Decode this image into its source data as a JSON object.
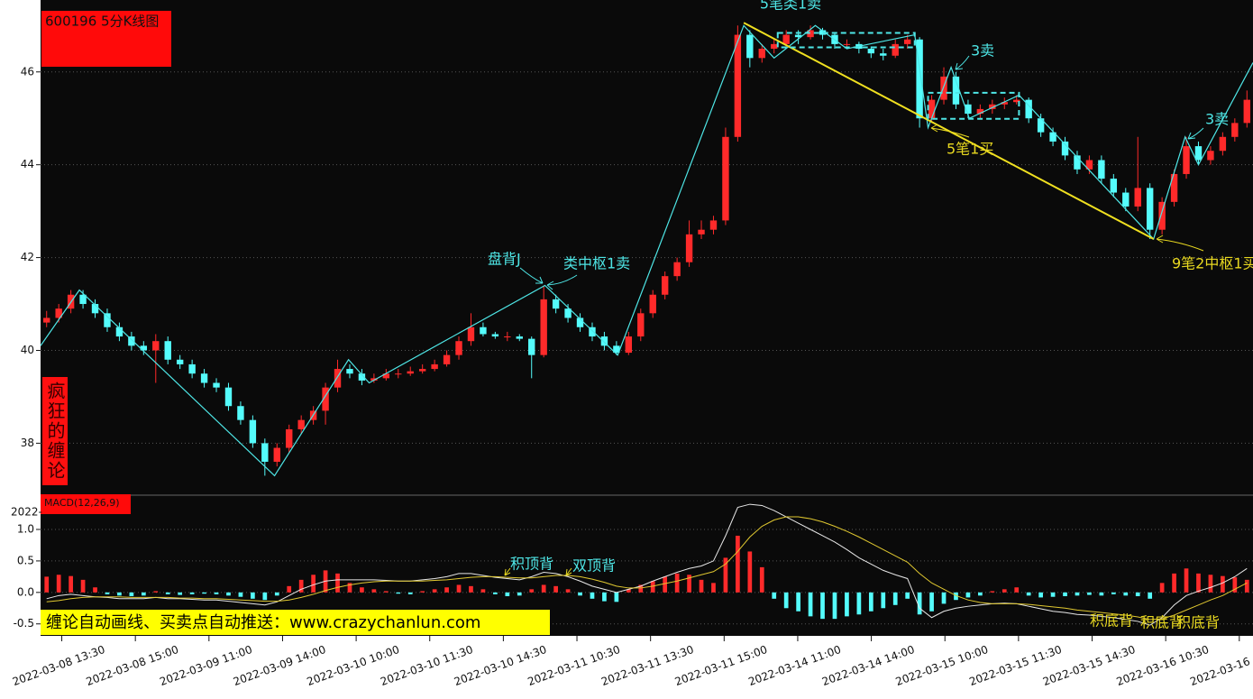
{
  "chart_data": [
    {
      "type": "candlestick",
      "title": "600196 5分K线图",
      "side_label": "疯狂的缠论",
      "xlim": [
        -0.5,
        99.5
      ],
      "ylim": [
        36.9,
        47.55
      ],
      "yticks": [
        38,
        40,
        42,
        44,
        46
      ],
      "grid": true,
      "up_color": "#ff2a2a",
      "down_color": "#54fcfc",
      "ohlc": [
        [
          40.6,
          40.85,
          40.5,
          40.7
        ],
        [
          40.7,
          41.0,
          40.6,
          40.9
        ],
        [
          40.9,
          41.3,
          40.8,
          41.2
        ],
        [
          41.2,
          41.3,
          40.9,
          41.0
        ],
        [
          41.0,
          41.1,
          40.7,
          40.8
        ],
        [
          40.8,
          40.9,
          40.4,
          40.5
        ],
        [
          40.5,
          40.6,
          40.2,
          40.3
        ],
        [
          40.3,
          40.4,
          40.0,
          40.1
        ],
        [
          40.1,
          40.2,
          39.9,
          40.0
        ],
        [
          40.0,
          40.35,
          39.3,
          40.2
        ],
        [
          40.2,
          40.3,
          39.7,
          39.8
        ],
        [
          39.8,
          39.9,
          39.6,
          39.7
        ],
        [
          39.7,
          39.8,
          39.4,
          39.5
        ],
        [
          39.5,
          39.6,
          39.2,
          39.3
        ],
        [
          39.3,
          39.4,
          39.1,
          39.2
        ],
        [
          39.2,
          39.3,
          38.7,
          38.8
        ],
        [
          38.8,
          38.9,
          38.4,
          38.5
        ],
        [
          38.5,
          38.6,
          37.9,
          38.0
        ],
        [
          38.0,
          38.1,
          37.3,
          37.6
        ],
        [
          37.6,
          38.0,
          37.5,
          37.9
        ],
        [
          37.9,
          38.4,
          37.8,
          38.3
        ],
        [
          38.3,
          38.6,
          38.2,
          38.5
        ],
        [
          38.5,
          38.8,
          38.4,
          38.7
        ],
        [
          38.7,
          39.3,
          38.4,
          39.2
        ],
        [
          39.2,
          39.8,
          39.1,
          39.6
        ],
        [
          39.6,
          39.7,
          39.4,
          39.5
        ],
        [
          39.5,
          39.6,
          39.25,
          39.35
        ],
        [
          39.35,
          39.5,
          39.3,
          39.4
        ],
        [
          39.4,
          39.6,
          39.35,
          39.5
        ],
        [
          39.5,
          39.6,
          39.4,
          39.5
        ],
        [
          39.5,
          39.65,
          39.45,
          39.55
        ],
        [
          39.55,
          39.7,
          39.5,
          39.6
        ],
        [
          39.6,
          39.8,
          39.55,
          39.7
        ],
        [
          39.7,
          40.0,
          39.65,
          39.9
        ],
        [
          39.9,
          40.3,
          39.8,
          40.2
        ],
        [
          40.2,
          40.8,
          40.1,
          40.5
        ],
        [
          40.5,
          40.6,
          40.3,
          40.35
        ],
        [
          40.35,
          40.4,
          40.25,
          40.3
        ],
        [
          40.3,
          40.4,
          40.2,
          40.3
        ],
        [
          40.3,
          40.35,
          40.2,
          40.25
        ],
        [
          40.25,
          40.3,
          39.4,
          39.9
        ],
        [
          39.9,
          41.4,
          39.85,
          41.1
        ],
        [
          41.1,
          41.2,
          40.8,
          40.9
        ],
        [
          40.9,
          41.0,
          40.6,
          40.7
        ],
        [
          40.7,
          40.8,
          40.4,
          40.5
        ],
        [
          40.5,
          40.6,
          40.2,
          40.3
        ],
        [
          40.3,
          40.4,
          40.0,
          40.1
        ],
        [
          40.1,
          40.2,
          39.9,
          39.95
        ],
        [
          39.95,
          40.4,
          39.9,
          40.3
        ],
        [
          40.3,
          40.9,
          40.2,
          40.8
        ],
        [
          40.8,
          41.3,
          40.7,
          41.2
        ],
        [
          41.2,
          41.7,
          41.1,
          41.6
        ],
        [
          41.6,
          42.0,
          41.5,
          41.9
        ],
        [
          41.9,
          42.8,
          41.8,
          42.5
        ],
        [
          42.5,
          42.8,
          42.4,
          42.6
        ],
        [
          42.6,
          42.9,
          42.5,
          42.8
        ],
        [
          42.8,
          44.8,
          42.7,
          44.6
        ],
        [
          44.6,
          47.0,
          44.5,
          46.8
        ],
        [
          46.8,
          46.9,
          46.1,
          46.3
        ],
        [
          46.3,
          46.6,
          46.2,
          46.5
        ],
        [
          46.5,
          46.7,
          46.4,
          46.6
        ],
        [
          46.6,
          46.9,
          46.5,
          46.8
        ],
        [
          46.8,
          46.9,
          46.6,
          46.75
        ],
        [
          46.75,
          47.0,
          46.7,
          46.9
        ],
        [
          46.9,
          46.95,
          46.7,
          46.8
        ],
        [
          46.8,
          46.85,
          46.5,
          46.6
        ],
        [
          46.6,
          46.7,
          46.5,
          46.6
        ],
        [
          46.6,
          46.65,
          46.4,
          46.5
        ],
        [
          46.5,
          46.55,
          46.3,
          46.4
        ],
        [
          46.4,
          46.5,
          46.25,
          46.35
        ],
        [
          46.35,
          46.7,
          46.3,
          46.6
        ],
        [
          46.6,
          46.8,
          46.5,
          46.7
        ],
        [
          46.7,
          46.75,
          44.8,
          45.0
        ],
        [
          45.0,
          45.5,
          44.9,
          45.4
        ],
        [
          45.4,
          46.1,
          45.3,
          45.9
        ],
        [
          45.9,
          46.0,
          45.2,
          45.3
        ],
        [
          45.3,
          45.4,
          45.0,
          45.1
        ],
        [
          45.1,
          45.3,
          45.0,
          45.2
        ],
        [
          45.2,
          45.4,
          45.1,
          45.3
        ],
        [
          45.3,
          45.45,
          45.2,
          45.35
        ],
        [
          45.35,
          45.5,
          45.3,
          45.4
        ],
        [
          45.4,
          45.45,
          44.9,
          45.0
        ],
        [
          45.0,
          45.1,
          44.6,
          44.7
        ],
        [
          44.7,
          44.8,
          44.4,
          44.5
        ],
        [
          44.5,
          44.6,
          44.1,
          44.2
        ],
        [
          44.2,
          44.3,
          43.8,
          43.9
        ],
        [
          43.9,
          44.2,
          43.8,
          44.1
        ],
        [
          44.1,
          44.2,
          43.6,
          43.7
        ],
        [
          43.7,
          43.8,
          43.3,
          43.4
        ],
        [
          43.4,
          43.5,
          43.0,
          43.1
        ],
        [
          43.1,
          44.6,
          43.0,
          43.5
        ],
        [
          43.5,
          43.6,
          42.4,
          42.6
        ],
        [
          42.6,
          43.3,
          42.5,
          43.2
        ],
        [
          43.2,
          43.9,
          43.1,
          43.8
        ],
        [
          43.8,
          44.6,
          43.7,
          44.4
        ],
        [
          44.4,
          44.5,
          44.0,
          44.1
        ],
        [
          44.1,
          44.4,
          44.0,
          44.3
        ],
        [
          44.3,
          44.7,
          44.2,
          44.6
        ],
        [
          44.6,
          45.0,
          44.5,
          44.9
        ],
        [
          44.9,
          45.6,
          44.8,
          45.4
        ]
      ],
      "strokes": {
        "color": "#4ee6e6",
        "x": [
          -0.5,
          2.7,
          18.8,
          24.9,
          26.6,
          41.1,
          47.1,
          57.5,
          60,
          63.4,
          66,
          71.6,
          72.7,
          74.6,
          76.1,
          80.2,
          91.3,
          93.9,
          95,
          99.5
        ],
        "y": [
          40.1,
          41.3,
          37.3,
          39.8,
          39.3,
          41.4,
          39.9,
          47.0,
          46.3,
          47.0,
          46.5,
          46.8,
          44.8,
          46.1,
          45.0,
          45.5,
          42.4,
          44.6,
          44.0,
          46.2
        ]
      },
      "trend_line": {
        "color": "#f0e020",
        "x": [
          57.5,
          91.3
        ],
        "y": [
          47.06,
          42.4
        ]
      },
      "centers": [
        {
          "x": [
            60.3,
            71.6
          ],
          "y": [
            46.53,
            46.84
          ]
        },
        {
          "x": [
            72.7,
            80.2
          ],
          "y": [
            44.99,
            45.55
          ]
        }
      ],
      "annotations": [
        "5笔类1卖",
        "3卖",
        "5笔1买",
        "3卖",
        "9笔2中枢1买",
        "盘背J",
        "类中枢1卖"
      ]
    },
    {
      "type": "macd",
      "title": "MACD(12,26,9)",
      "cut_label": "2022-",
      "banner": "缠论自动画线、买卖点自动推送：www.crazychanlun.com",
      "xlim": [
        -0.5,
        99.5
      ],
      "ylim": [
        -0.69,
        1.53
      ],
      "yticks": [
        {
          "value": 1,
          "label": "1.0"
        },
        0.5,
        {
          "value": 0,
          "label": "0.0"
        },
        -0.5
      ],
      "grid": true,
      "xticks": [
        {
          "value": 1.25,
          "label": "2022-03-08 13:30"
        },
        {
          "value": 7.32,
          "label": "2022-03-08 15:00"
        },
        {
          "value": 13.39,
          "label": "2022-03-09 11:00"
        },
        {
          "value": 19.46,
          "label": "2022-03-09 14:00"
        },
        {
          "value": 25.53,
          "label": "2022-03-10 10:00"
        },
        {
          "value": 31.6,
          "label": "2022-03-10 11:30"
        },
        {
          "value": 37.67,
          "label": "2022-03-10 14:30"
        },
        {
          "value": 43.74,
          "label": "2022-03-11 10:30"
        },
        {
          "value": 49.81,
          "label": "2022-03-11 13:30"
        },
        {
          "value": 55.88,
          "label": "2022-03-11 15:00"
        },
        {
          "value": 61.95,
          "label": "2022-03-14 11:00"
        },
        {
          "value": 68.02,
          "label": "2022-03-14 14:00"
        },
        {
          "value": 74.09,
          "label": "2022-03-15 10:00"
        },
        {
          "value": 80.16,
          "label": "2022-03-15 11:30"
        },
        {
          "value": 86.23,
          "label": "2022-03-15 14:30"
        },
        {
          "value": 92.3,
          "label": "2022-03-16 10:30"
        },
        {
          "value": 98.37,
          "label": "2022-03-16"
        }
      ],
      "up_color": "#ff2a2a",
      "down_color": "#54fcfc",
      "values": [
        0.25,
        0.28,
        0.26,
        0.2,
        0.08,
        -0.03,
        -0.05,
        -0.06,
        -0.05,
        0.02,
        -0.03,
        -0.04,
        -0.03,
        -0.02,
        -0.03,
        -0.05,
        -0.07,
        -0.1,
        -0.12,
        -0.05,
        0.1,
        0.2,
        0.28,
        0.35,
        0.3,
        0.15,
        0.08,
        0.05,
        0.02,
        -0.02,
        -0.03,
        0.02,
        0.05,
        0.08,
        0.12,
        0.1,
        0.05,
        -0.03,
        -0.06,
        -0.05,
        0.05,
        0.12,
        0.1,
        0.05,
        -0.05,
        -0.1,
        -0.14,
        -0.15,
        0.05,
        0.12,
        0.18,
        0.25,
        0.3,
        0.28,
        0.2,
        0.15,
        0.55,
        0.9,
        0.65,
        0.4,
        -0.1,
        -0.25,
        -0.3,
        -0.38,
        -0.42,
        -0.42,
        -0.38,
        -0.35,
        -0.3,
        -0.25,
        -0.2,
        -0.1,
        -0.35,
        -0.3,
        -0.18,
        -0.12,
        -0.08,
        -0.05,
        0.02,
        0.05,
        0.08,
        -0.05,
        -0.08,
        -0.07,
        -0.06,
        -0.05,
        -0.04,
        -0.05,
        -0.03,
        -0.05,
        -0.06,
        -0.1,
        0.15,
        0.3,
        0.38,
        0.3,
        0.28,
        0.26,
        0.24,
        0.2
      ],
      "series": [
        {
          "color": "#e8e8e8",
          "values": [
            -0.1,
            -0.05,
            -0.03,
            -0.05,
            -0.07,
            -0.08,
            -0.1,
            -0.1,
            -0.1,
            -0.08,
            -0.1,
            -0.1,
            -0.11,
            -0.12,
            -0.12,
            -0.14,
            -0.16,
            -0.18,
            -0.2,
            -0.15,
            -0.05,
            0.05,
            0.12,
            0.18,
            0.2,
            0.2,
            0.2,
            0.2,
            0.19,
            0.18,
            0.18,
            0.2,
            0.22,
            0.25,
            0.3,
            0.3,
            0.27,
            0.24,
            0.22,
            0.2,
            0.25,
            0.32,
            0.3,
            0.25,
            0.18,
            0.1,
            0.05,
            0.0,
            0.05,
            0.1,
            0.18,
            0.25,
            0.32,
            0.38,
            0.42,
            0.5,
            0.9,
            1.35,
            1.4,
            1.38,
            1.3,
            1.2,
            1.1,
            1.0,
            0.9,
            0.8,
            0.68,
            0.55,
            0.45,
            0.35,
            0.28,
            0.22,
            -0.25,
            -0.4,
            -0.3,
            -0.25,
            -0.22,
            -0.2,
            -0.18,
            -0.17,
            -0.18,
            -0.22,
            -0.26,
            -0.3,
            -0.32,
            -0.35,
            -0.36,
            -0.38,
            -0.4,
            -0.43,
            -0.46,
            -0.52,
            -0.4,
            -0.2,
            -0.05,
            0.02,
            0.08,
            0.15,
            0.25,
            0.38
          ]
        },
        {
          "color": "#e0c830",
          "values": [
            -0.15,
            -0.13,
            -0.1,
            -0.08,
            -0.07,
            -0.07,
            -0.07,
            -0.08,
            -0.08,
            -0.08,
            -0.08,
            -0.09,
            -0.09,
            -0.1,
            -0.1,
            -0.11,
            -0.12,
            -0.13,
            -0.14,
            -0.14,
            -0.12,
            -0.08,
            -0.03,
            0.03,
            0.08,
            0.12,
            0.15,
            0.17,
            0.18,
            0.18,
            0.18,
            0.18,
            0.19,
            0.2,
            0.22,
            0.24,
            0.25,
            0.25,
            0.24,
            0.23,
            0.23,
            0.25,
            0.27,
            0.27,
            0.25,
            0.21,
            0.16,
            0.1,
            0.07,
            0.07,
            0.1,
            0.14,
            0.18,
            0.23,
            0.28,
            0.33,
            0.45,
            0.65,
            0.88,
            1.05,
            1.15,
            1.2,
            1.2,
            1.17,
            1.12,
            1.05,
            0.97,
            0.88,
            0.78,
            0.68,
            0.58,
            0.48,
            0.3,
            0.15,
            0.05,
            -0.05,
            -0.12,
            -0.16,
            -0.18,
            -0.18,
            -0.18,
            -0.19,
            -0.21,
            -0.23,
            -0.25,
            -0.28,
            -0.3,
            -0.32,
            -0.34,
            -0.36,
            -0.39,
            -0.43,
            -0.42,
            -0.36,
            -0.28,
            -0.2,
            -0.12,
            -0.05,
            0.05,
            0.15
          ]
        }
      ],
      "annotations": [
        "积顶背",
        "双顶背",
        "积底背",
        "积底背",
        "积底背"
      ]
    }
  ]
}
